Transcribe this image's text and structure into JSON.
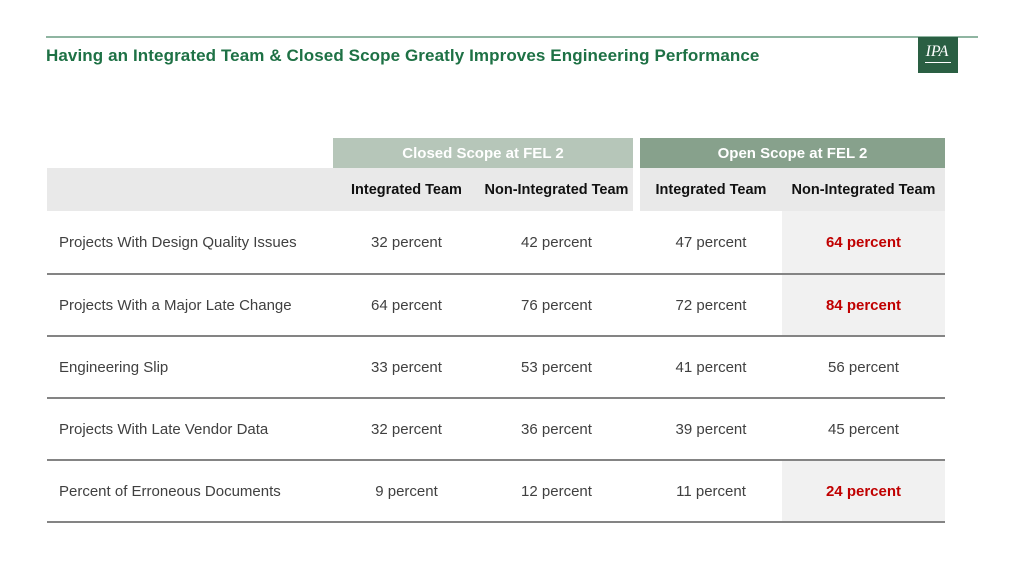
{
  "header": {
    "title": "Having an Integrated Team & Closed Scope Greatly Improves Engineering Performance",
    "logo_text": "IPA"
  },
  "table": {
    "scope_headers": [
      {
        "label": "Closed Scope at FEL 2"
      },
      {
        "label": "Open Scope at FEL 2"
      }
    ],
    "team_headers": [
      "Integrated Team",
      "Non-Integrated Team",
      "Integrated Team",
      "Non-Integrated Team"
    ],
    "rows": [
      {
        "label": "Projects With Design Quality Issues",
        "values": [
          "32 percent",
          "42 percent",
          "47 percent",
          "64 percent"
        ],
        "highlight_last": true
      },
      {
        "label": "Projects With a Major Late Change",
        "values": [
          "64 percent",
          "76 percent",
          "72 percent",
          "84 percent"
        ],
        "highlight_last": true
      },
      {
        "label": "Engineering Slip",
        "values": [
          "33 percent",
          "53 percent",
          "41 percent",
          "56 percent"
        ],
        "highlight_last": false
      },
      {
        "label": "Projects With Late Vendor Data",
        "values": [
          "32 percent",
          "36 percent",
          "39 percent",
          "45 percent"
        ],
        "highlight_last": false
      },
      {
        "label": "Percent of Erroneous Documents",
        "values": [
          "9 percent",
          "12 percent",
          "11 percent",
          "24 percent"
        ],
        "highlight_last": true
      }
    ]
  },
  "colors": {
    "title_green": "#1e7145",
    "rule_green": "#8fb5a1",
    "logo_green": "#2a5f43",
    "closed_header_bg": "#b6c6b9",
    "open_header_bg": "#87a18c",
    "subheader_bg": "#e9e9e9",
    "highlight_bg": "#f1f1f1",
    "highlight_text": "#c00000",
    "row_line": "#848484",
    "body_text": "#404040"
  }
}
